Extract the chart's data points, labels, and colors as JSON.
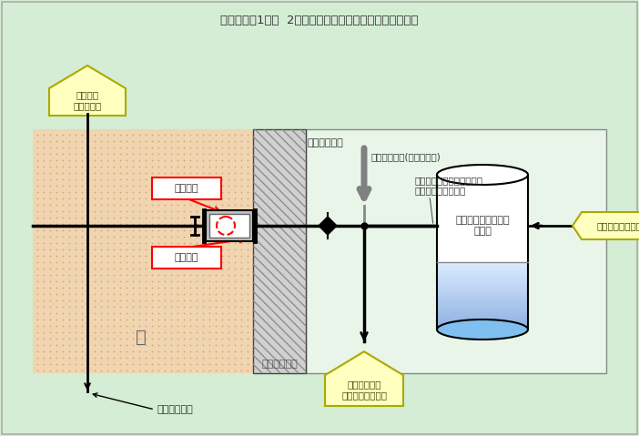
{
  "title": "伊方発電所1号機  2次系ブローダウンタンクまわり概略図",
  "bg_color": "#d4edd4",
  "label_degasser": "脱気器室\n屋内消火栓",
  "label_turbine_building": "タービン建家",
  "label_plant_water": "所内用水系統(新設ライン)",
  "label_blowdown_pipe": "２次系ブローダウンタンク\n　排水冷却用水配管",
  "label_tank": "２次系ブローダウン\nタンク",
  "label_drain": "ドレン水（高温）",
  "label_pit": "タービン建家\n非常用排水ピット",
  "label_fire_water": "消火用水系統",
  "label_current": "当該箇所",
  "label_cut": "切離箇所",
  "label_soil": "土",
  "label_concrete": "コンクリート"
}
